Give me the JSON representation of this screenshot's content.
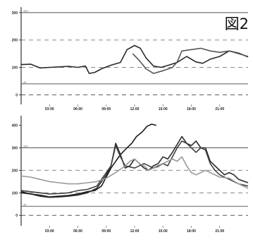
{
  "figure_label": "図2",
  "chart_data": [
    {
      "type": "line",
      "ylim": [
        -30,
        310
      ],
      "y_ticks": [
        0,
        100,
        200,
        300
      ],
      "reference_lines": [
        300,
        200,
        100,
        40,
        0
      ],
      "ref_labels": [
        "300",
        "40"
      ],
      "x_ticks": [
        "03:00",
        "06:00",
        "09:00",
        "12:00",
        "15:00",
        "18:00",
        "21:00"
      ],
      "x_range": [
        0,
        24
      ],
      "series": [
        {
          "color": "#2a2a2a",
          "points": [
            [
              0,
              110
            ],
            [
              1,
              112
            ],
            [
              2,
              98
            ],
            [
              3,
              100
            ],
            [
              4,
              102
            ],
            [
              5,
              104
            ],
            [
              6,
              100
            ],
            [
              6.8,
              105
            ],
            [
              7.2,
              78
            ],
            [
              7.8,
              82
            ],
            [
              8.5,
              95
            ],
            [
              9.5,
              108
            ],
            [
              10.5,
              118
            ],
            [
              11.2,
              165
            ],
            [
              12,
              180
            ],
            [
              12.6,
              170
            ],
            [
              13.2,
              135
            ],
            [
              14,
              105
            ],
            [
              14.8,
              100
            ],
            [
              15.6,
              108
            ],
            [
              16.5,
              118
            ],
            [
              17.5,
              140
            ],
            [
              18.5,
              120
            ],
            [
              19.2,
              115
            ],
            [
              20,
              130
            ],
            [
              21,
              140
            ],
            [
              22,
              160
            ],
            [
              23,
              152
            ],
            [
              24,
              138
            ]
          ]
        },
        {
          "color": "#555555",
          "points": [
            [
              11.8,
              150
            ],
            [
              12.5,
              125
            ],
            [
              13.2,
              95
            ],
            [
              14,
              78
            ],
            [
              15,
              88
            ],
            [
              16,
              100
            ],
            [
              16.5,
              120
            ],
            [
              17,
              160
            ],
            [
              18,
              165
            ],
            [
              19,
              170
            ],
            [
              20,
              160
            ],
            [
              21,
              155
            ],
            [
              22,
              160
            ],
            [
              23,
              150
            ],
            [
              24,
              140
            ]
          ]
        }
      ]
    },
    {
      "type": "line",
      "ylim": [
        -40,
        430
      ],
      "y_ticks": [
        0,
        100,
        200,
        300,
        400
      ],
      "reference_lines": [
        300,
        200,
        100,
        40,
        0
      ],
      "ref_labels": [
        "300",
        "40"
      ],
      "x_ticks": [
        "03:00",
        "06:00",
        "09:00",
        "12:00",
        "15:00",
        "18:00",
        "21:00"
      ],
      "x_range": [
        0,
        24
      ],
      "series": [
        {
          "color": "#1a1a1a",
          "points": [
            [
              0,
              105
            ],
            [
              1,
              95
            ],
            [
              2,
              90
            ],
            [
              3,
              82
            ],
            [
              4,
              85
            ],
            [
              5,
              88
            ],
            [
              6,
              95
            ],
            [
              7,
              105
            ],
            [
              7.8,
              110
            ],
            [
              8.5,
              130
            ],
            [
              9.5,
              210
            ],
            [
              10.5,
              270
            ],
            [
              11.2,
              300
            ],
            [
              11.7,
              320
            ],
            [
              12.2,
              350
            ],
            [
              12.8,
              370
            ],
            [
              13.3,
              395
            ],
            [
              13.8,
              405
            ],
            [
              14.3,
              400
            ]
          ]
        },
        {
          "color": "#2a2a2a",
          "points": [
            [
              0,
              100
            ],
            [
              1,
              95
            ],
            [
              2,
              85
            ],
            [
              3,
              80
            ],
            [
              4,
              82
            ],
            [
              5,
              85
            ],
            [
              6,
              90
            ],
            [
              7,
              100
            ],
            [
              8,
              120
            ],
            [
              9,
              180
            ],
            [
              9.5,
              220
            ],
            [
              10,
              320
            ],
            [
              10.5,
              270
            ],
            [
              11,
              210
            ],
            [
              11.5,
              220
            ],
            [
              12,
              250
            ],
            [
              12.5,
              230
            ],
            [
              13,
              210
            ],
            [
              13.5,
              200
            ],
            [
              14,
              220
            ],
            [
              14.5,
              230
            ],
            [
              15,
              260
            ],
            [
              15.5,
              250
            ],
            [
              16,
              280
            ],
            [
              17,
              350
            ],
            [
              17.5,
              320
            ],
            [
              18,
              310
            ],
            [
              18.5,
              330
            ],
            [
              19,
              300
            ],
            [
              19.5,
              300
            ],
            [
              20,
              240
            ],
            [
              20.5,
              220
            ],
            [
              21,
              200
            ],
            [
              21.5,
              180
            ],
            [
              22,
              190
            ],
            [
              22.5,
              180
            ],
            [
              23,
              160
            ],
            [
              24,
              145
            ]
          ]
        },
        {
          "color": "#404040",
          "points": [
            [
              0,
              110
            ],
            [
              1,
              105
            ],
            [
              2,
              100
            ],
            [
              3,
              95
            ],
            [
              4,
              97
            ],
            [
              5,
              100
            ],
            [
              6,
              110
            ],
            [
              7,
              115
            ],
            [
              8,
              130
            ],
            [
              9,
              190
            ],
            [
              9.5,
              220
            ],
            [
              10,
              310
            ],
            [
              10.5,
              260
            ],
            [
              11,
              220
            ],
            [
              12,
              210
            ],
            [
              13,
              230
            ],
            [
              14,
              210
            ],
            [
              15,
              230
            ],
            [
              15.5,
              220
            ],
            [
              16,
              260
            ],
            [
              16.5,
              300
            ],
            [
              17,
              330
            ],
            [
              17.5,
              320
            ],
            [
              18,
              300
            ],
            [
              18.5,
              280
            ],
            [
              19,
              300
            ],
            [
              19.5,
              290
            ],
            [
              20,
              230
            ],
            [
              20.5,
              200
            ],
            [
              21,
              180
            ],
            [
              22,
              160
            ],
            [
              23,
              140
            ],
            [
              24,
              130
            ]
          ]
        },
        {
          "color": "#9a9a9a",
          "points": [
            [
              0,
              175
            ],
            [
              1,
              170
            ],
            [
              2,
              160
            ],
            [
              3,
              150
            ],
            [
              4,
              145
            ],
            [
              5,
              140
            ],
            [
              6,
              140
            ],
            [
              7,
              145
            ],
            [
              8,
              150
            ],
            [
              9,
              165
            ],
            [
              10,
              190
            ],
            [
              11,
              220
            ],
            [
              11.5,
              240
            ],
            [
              12,
              250
            ],
            [
              12.5,
              230
            ],
            [
              13,
              220
            ],
            [
              13.5,
              200
            ],
            [
              14,
              210
            ],
            [
              14.5,
              215
            ],
            [
              15,
              230
            ],
            [
              15.5,
              240
            ],
            [
              16,
              250
            ],
            [
              16.5,
              240
            ],
            [
              17,
              260
            ],
            [
              17.5,
              220
            ],
            [
              18,
              190
            ],
            [
              18.5,
              180
            ],
            [
              19,
              190
            ],
            [
              19.5,
              200
            ],
            [
              20,
              190
            ],
            [
              21,
              170
            ],
            [
              22,
              165
            ],
            [
              23,
              140
            ],
            [
              24,
              120
            ]
          ]
        }
      ]
    }
  ]
}
